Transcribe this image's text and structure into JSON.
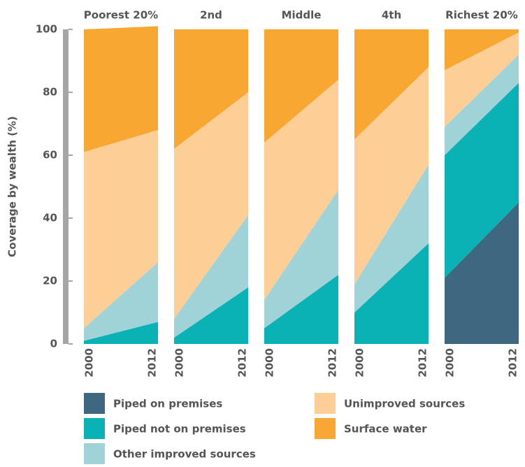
{
  "chart_data": {
    "type": "stacked-area",
    "ylabel": "Coverage by wealth (%)",
    "ylim": [
      0,
      100
    ],
    "yticks": [
      0,
      20,
      40,
      60,
      80,
      100
    ],
    "panels": [
      "Poorest 20%",
      "2nd",
      "Middle",
      "4th",
      "Richest 20%"
    ],
    "categories": [
      "2000",
      "2012"
    ],
    "series": [
      {
        "name": "Piped on premises",
        "color": "#3d6880",
        "values": [
          [
            0,
            0
          ],
          [
            0,
            0
          ],
          [
            0,
            0
          ],
          [
            0,
            0
          ],
          [
            21,
            45
          ]
        ]
      },
      {
        "name": "Piped not on premises",
        "color": "#0ab2b6",
        "values": [
          [
            1,
            7
          ],
          [
            2,
            18
          ],
          [
            5,
            22
          ],
          [
            10,
            32
          ],
          [
            39,
            38
          ]
        ]
      },
      {
        "name": "Other improved sources",
        "color": "#9fd3d8",
        "values": [
          [
            4,
            19
          ],
          [
            6,
            23
          ],
          [
            9,
            27
          ],
          [
            9,
            25
          ],
          [
            9,
            9
          ]
        ]
      },
      {
        "name": "Unimproved sources",
        "color": "#fdcf97",
        "values": [
          [
            56,
            42
          ],
          [
            54,
            39
          ],
          [
            50,
            35
          ],
          [
            46,
            31
          ],
          [
            18,
            7
          ]
        ]
      },
      {
        "name": "Surface water",
        "color": "#f8a733",
        "values": [
          [
            39,
            33
          ],
          [
            38,
            20
          ],
          [
            36,
            16
          ],
          [
            35,
            12
          ],
          [
            13,
            1
          ]
        ]
      }
    ]
  }
}
